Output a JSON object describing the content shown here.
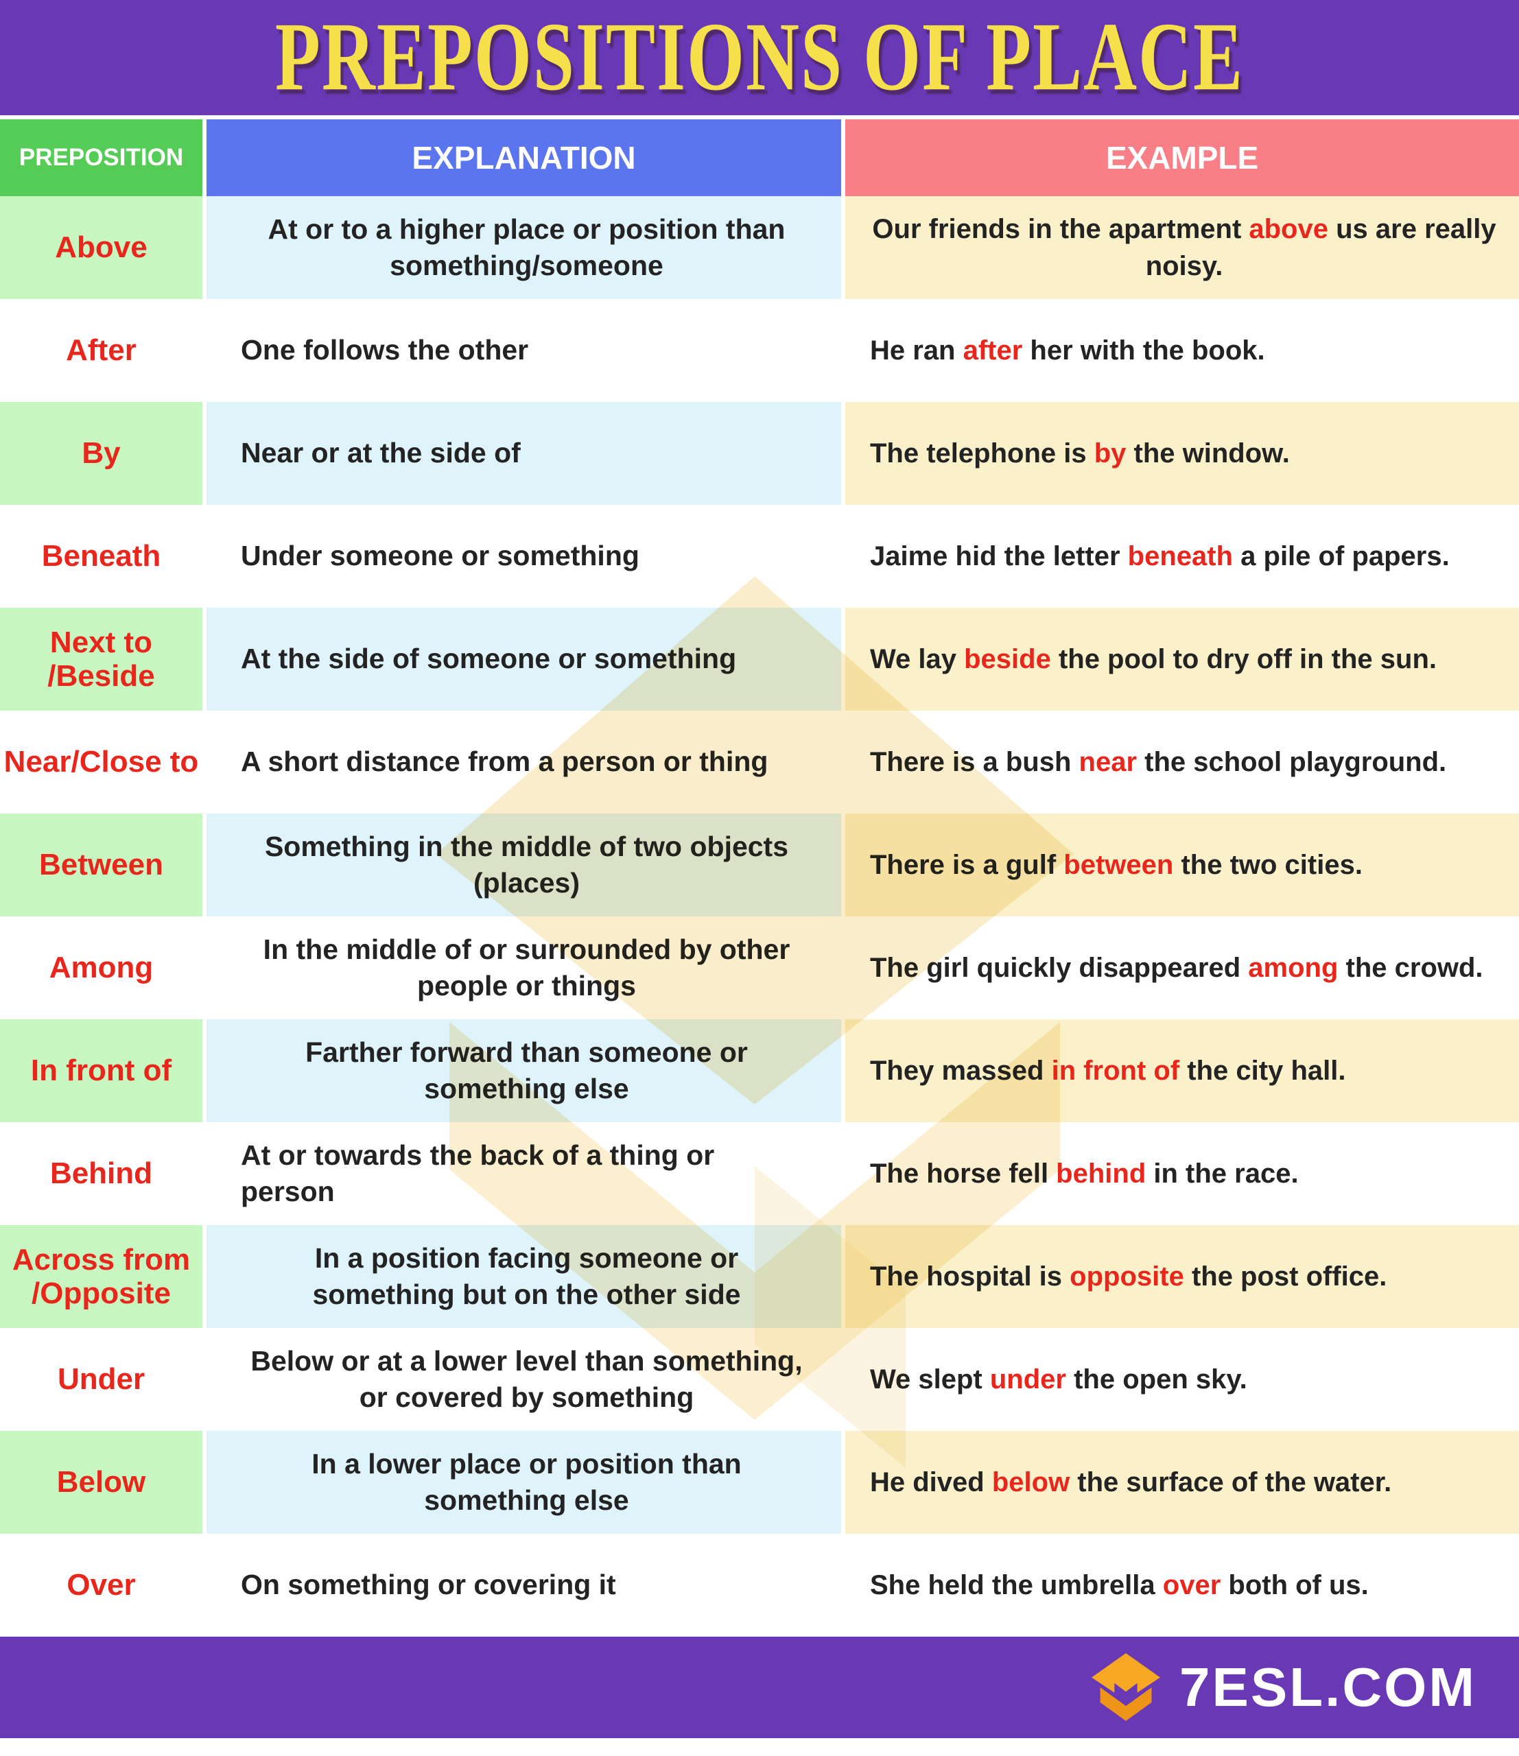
{
  "title": "PREPOSITIONS OF PLACE",
  "columns": [
    "PREPOSITION",
    "EXPLANATION",
    "EXAMPLE"
  ],
  "colors": {
    "purple": "#6838B5",
    "green": "#54CC56",
    "blue": "#5B75EE",
    "pink": "#F97F86",
    "lightGreen": "#C8F6C1",
    "lightBlue": "#DFF3FA",
    "lightYellow": "#FAF1CB",
    "red": "#E9261C",
    "dark": "#232323",
    "titleYellow": "#F5E04B",
    "logoOrange": "#F7A823",
    "logoOrangeDark": "#EE9418"
  },
  "rows": [
    {
      "preposition": "Above",
      "explanation": "At or to a higher place or position than something/someone",
      "example": [
        "Our friends in the apartment ",
        {
          "hl": "above"
        },
        " us are really noisy."
      ]
    },
    {
      "preposition": "After",
      "explanation": "One follows the other",
      "example": [
        "He ran ",
        {
          "hl": "after"
        },
        " her with the book."
      ]
    },
    {
      "preposition": "By",
      "explanation": "Near or at the side of",
      "example": [
        "The telephone is ",
        {
          "hl": "by"
        },
        " the window."
      ]
    },
    {
      "preposition": "Beneath",
      "explanation": "Under someone or something",
      "example": [
        "Jaime hid the letter ",
        {
          "hl": "beneath"
        },
        " a pile of papers."
      ]
    },
    {
      "preposition": "Next to\n/Beside",
      "explanation": "At the side of someone or something",
      "example": [
        "We lay ",
        {
          "hl": "beside"
        },
        " the pool to dry off in the sun."
      ]
    },
    {
      "preposition": "Near/Close to",
      "explanation": "A short distance from a person or thing",
      "example": [
        "There is a bush ",
        {
          "hl": "near"
        },
        " the school playground."
      ]
    },
    {
      "preposition": "Between",
      "explanation": "Something in the middle of two objects (places)",
      "example": [
        "There is a gulf ",
        {
          "hl": "between"
        },
        " the two cities."
      ]
    },
    {
      "preposition": "Among",
      "explanation": "In the middle of or surrounded by other people or things",
      "example": [
        "The girl quickly disappeared ",
        {
          "hl": "among"
        },
        " the crowd."
      ]
    },
    {
      "preposition": "In front of",
      "explanation": "Farther forward than someone or something else",
      "example": [
        "They massed ",
        {
          "hl": "in front of"
        },
        " the city hall."
      ]
    },
    {
      "preposition": "Behind",
      "explanation": "At or towards the back of a thing or person",
      "example": [
        "The horse fell ",
        {
          "hl": "behind"
        },
        " in the race."
      ]
    },
    {
      "preposition": "Across from\n/Opposite",
      "explanation": "In a position facing someone or something but on the other side",
      "example": [
        "The hospital is ",
        {
          "hl": "opposite"
        },
        " the post office."
      ]
    },
    {
      "preposition": "Under",
      "explanation": "Below or at a lower level than something, or covered by something",
      "example": [
        "We slept ",
        {
          "hl": "under"
        },
        " the open sky."
      ]
    },
    {
      "preposition": "Below",
      "explanation": "In a lower place or position than something else",
      "example": [
        "He dived ",
        {
          "hl": "below"
        },
        " the surface of the water."
      ]
    },
    {
      "preposition": "Over",
      "explanation": "On something or covering it",
      "example": [
        "She held the umbrella ",
        {
          "hl": "over"
        },
        " both of us."
      ]
    }
  ],
  "footer": {
    "brand": "7ESL.COM",
    "logo_icon": "graduation-cap-diamond"
  }
}
